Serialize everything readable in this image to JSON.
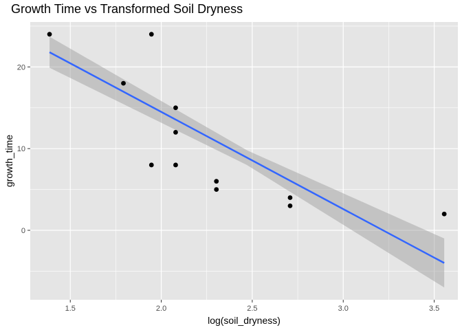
{
  "chart_data": {
    "type": "scatter",
    "title": "Growth Time vs Transformed Soil Dryness",
    "xlabel": "log(soil_dryness)",
    "ylabel": "growth_time",
    "xlim": [
      1.28,
      3.63
    ],
    "ylim": [
      -8.5,
      25.5
    ],
    "x_ticks": [
      1.5,
      2.0,
      2.5,
      3.0,
      3.5
    ],
    "x_tick_labels": [
      "1.5",
      "2.0",
      "2.5",
      "3.0",
      "3.5"
    ],
    "y_ticks": [
      0,
      10,
      20
    ],
    "y_tick_labels": [
      "0",
      "10",
      "20"
    ],
    "grid": true,
    "background": "#e5e5e5",
    "gridline_color": "#ffffff",
    "point_color": "#000000",
    "points": [
      {
        "x": 1.386,
        "y": 24
      },
      {
        "x": 1.792,
        "y": 18
      },
      {
        "x": 1.946,
        "y": 24
      },
      {
        "x": 1.946,
        "y": 8
      },
      {
        "x": 2.079,
        "y": 15
      },
      {
        "x": 2.079,
        "y": 12
      },
      {
        "x": 2.079,
        "y": 8
      },
      {
        "x": 2.303,
        "y": 6
      },
      {
        "x": 2.303,
        "y": 5
      },
      {
        "x": 2.708,
        "y": 4
      },
      {
        "x": 2.708,
        "y": 3
      },
      {
        "x": 3.555,
        "y": 2
      }
    ],
    "fit_line": {
      "method": "linear",
      "color": "#3366ff",
      "confidence_band_color": "#999999",
      "x_range": [
        1.386,
        3.555
      ],
      "y_at_start": 21.8,
      "y_at_end": -4.0,
      "band_halfwidth_at_start": 1.9,
      "band_halfwidth_mid": 0.9,
      "band_halfwidth_at_end": 3.0
    }
  }
}
